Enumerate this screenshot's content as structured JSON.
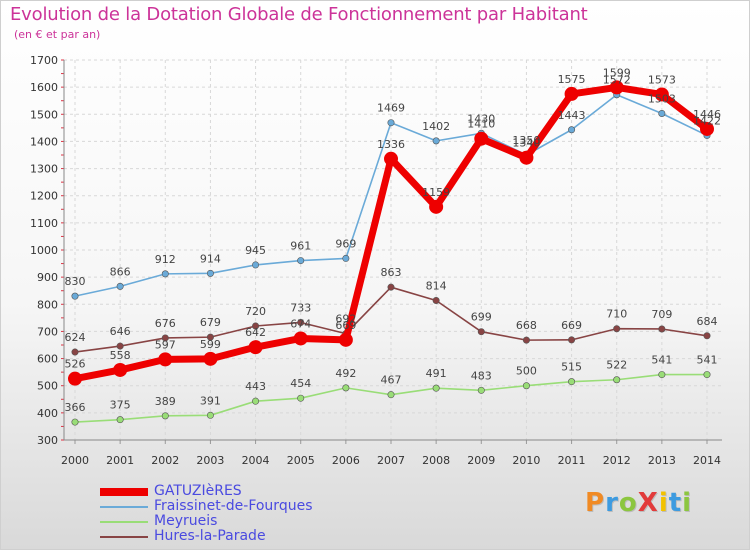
{
  "title": "Evolution de la Dotation Globale de Fonctionnement par Habitant",
  "subtitle": "(en € et par an)",
  "logo": {
    "text": "ProXiti",
    "colors": [
      "#f08a24",
      "#3d9be0",
      "#8cc63f",
      "#e23b3b",
      "#f2c200",
      "#3d9be0",
      "#8cc63f"
    ]
  },
  "chart_data": {
    "type": "line",
    "x": [
      "2000",
      "2001",
      "2002",
      "2003",
      "2004",
      "2005",
      "2006",
      "2007",
      "2008",
      "2009",
      "2010",
      "2011",
      "2012",
      "2013",
      "2014"
    ],
    "ylim": [
      300,
      1700
    ],
    "yticks": [
      "300",
      "400",
      "500",
      "600",
      "700",
      "800",
      "900",
      "1000",
      "1100",
      "1200",
      "1300",
      "1400",
      "1500",
      "1600",
      "1700"
    ],
    "grid": true,
    "legend_position": "bottom-left",
    "series": [
      {
        "name": "GATUZIèRES",
        "color": "#ee0000",
        "thick": true,
        "values": [
          526,
          558,
          597,
          599,
          642,
          674,
          669,
          1336,
          1159,
          1410,
          1340,
          1575,
          1599,
          1573,
          1446
        ],
        "labels": [
          "526",
          "558",
          "597",
          "599",
          "642",
          "674",
          "669",
          "1336",
          "1159",
          "1410",
          "1340",
          "1575",
          "1599",
          "1573",
          "1446"
        ]
      },
      {
        "name": "Fraissinet-de-Fourques",
        "color": "#6aaad8",
        "thick": false,
        "values": [
          830,
          866,
          912,
          914,
          945,
          961,
          969,
          1469,
          1402,
          1430,
          1350,
          1443,
          1572,
          1503,
          1422
        ],
        "labels": [
          "830",
          "866",
          "912",
          "914",
          "945",
          "961",
          "969",
          "1469",
          "1402",
          "1430",
          "1350",
          "1443",
          "1572",
          "1503",
          "1422"
        ]
      },
      {
        "name": "Meyrueis",
        "color": "#99dd77",
        "thick": false,
        "values": [
          366,
          375,
          389,
          391,
          443,
          454,
          492,
          467,
          491,
          483,
          500,
          515,
          522,
          541,
          541
        ],
        "labels": [
          "366",
          "375",
          "389",
          "391",
          "443",
          "454",
          "492",
          "467",
          "491",
          "483",
          "500",
          "515",
          "522",
          "541",
          "541"
        ]
      },
      {
        "name": "Hures-la-Parade",
        "color": "#884444",
        "thick": false,
        "values": [
          624,
          646,
          676,
          679,
          720,
          733,
          692,
          863,
          814,
          699,
          668,
          669,
          710,
          709,
          684
        ],
        "labels": [
          "624",
          "646",
          "676",
          "679",
          "720",
          "733",
          "692",
          "863",
          "814",
          "699",
          "668",
          "669",
          "710",
          "709",
          "684"
        ]
      }
    ]
  }
}
